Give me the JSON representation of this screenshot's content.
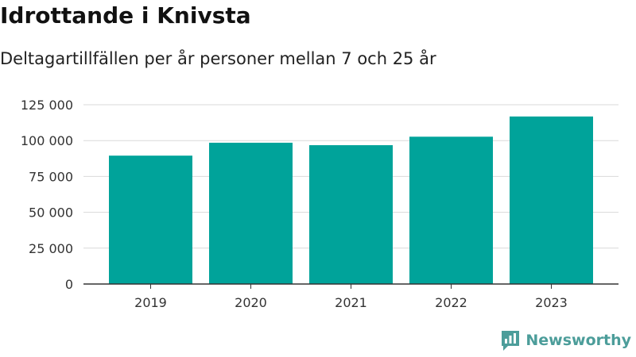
{
  "title": "Idrottande i Knivsta",
  "subtitle": "Deltagartillfällen per år personer mellan 7 och 25 år",
  "brand": {
    "name": "Newsworthy",
    "icon": "newsworthy-logo-icon",
    "color": "#4c9d9a"
  },
  "chart_data": {
    "type": "bar",
    "categories": [
      "2019",
      "2020",
      "2021",
      "2022",
      "2023"
    ],
    "values": [
      89500,
      98500,
      96800,
      102700,
      116800
    ],
    "ylim": [
      0,
      125000
    ],
    "yticks": [
      0,
      25000,
      50000,
      75000,
      100000,
      125000
    ],
    "ytick_labels": [
      "0",
      "25 000",
      "50 000",
      "75 000",
      "100 000",
      "125 000"
    ],
    "bar_color": "#00a39a",
    "grid": true,
    "grid_color": "#d9d9d9",
    "axis_color": "#333333"
  }
}
